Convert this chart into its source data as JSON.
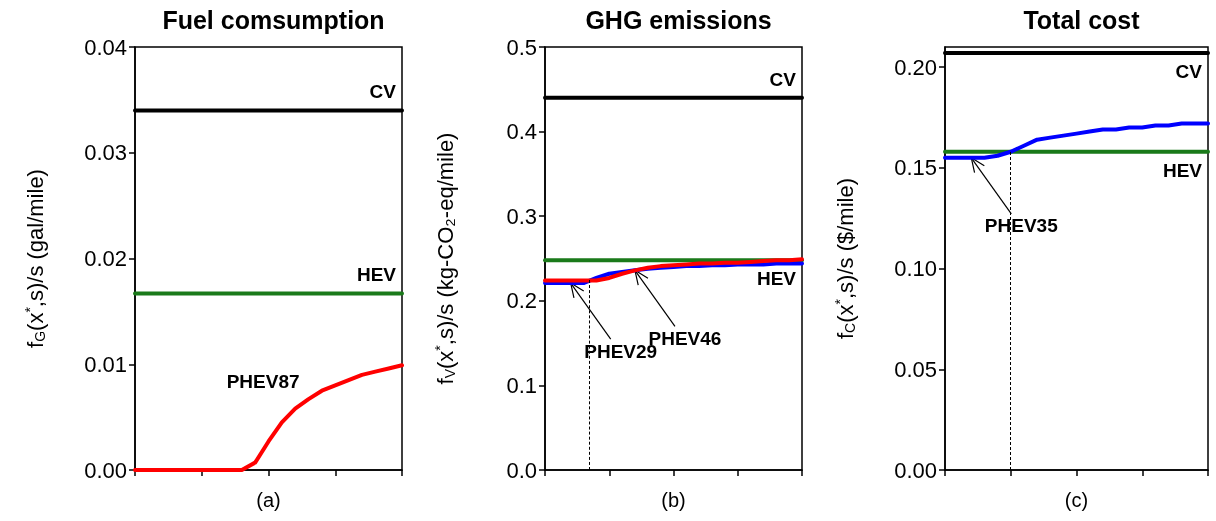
{
  "chart_data": [
    {
      "type": "line",
      "title": "Fuel comsumption",
      "xlabel": "(a)",
      "ylabel": "f$_{G}$(x$^{*}$,s)/s (gal/mile)",
      "categories": [
        null,
        null,
        null,
        null,
        null,
        null,
        null,
        null,
        null,
        null,
        null,
        null,
        null,
        null,
        null,
        null,
        null,
        null,
        null,
        null,
        null
      ],
      "ylim": [
        0,
        0.04
      ],
      "yticks": [
        {
          "value": 0,
          "label": "0.00"
        },
        {
          "value": 0.01,
          "label": "0.01"
        },
        {
          "value": 0.02,
          "label": "0.02"
        },
        {
          "value": 0.03,
          "label": "0.03"
        },
        {
          "value": 0.04,
          "label": "0.04"
        }
      ],
      "tick_labels": "y",
      "grid": false,
      "legend": false,
      "marker": "none",
      "series": [
        {
          "name": "CV",
          "color": "#000000",
          "values": [
            0.034,
            0.034,
            0.034,
            0.034,
            0.034,
            0.034,
            0.034,
            0.034,
            0.034,
            0.034,
            0.034,
            0.034,
            0.034,
            0.034,
            0.034,
            0.034,
            0.034,
            0.034,
            0.034,
            0.034,
            0.034
          ]
        },
        {
          "name": "HEV",
          "color": "#1a7a1a",
          "values": [
            0.0167,
            0.0167,
            0.0167,
            0.0167,
            0.0167,
            0.0167,
            0.0167,
            0.0167,
            0.0167,
            0.0167,
            0.0167,
            0.0167,
            0.0167,
            0.0167,
            0.0167,
            0.0167,
            0.0167,
            0.0167,
            0.0167,
            0.0167,
            0.0167
          ]
        },
        {
          "name": "PHEV87",
          "color": "#ff0000",
          "values": [
            0,
            0,
            0,
            0,
            0,
            0,
            0,
            0,
            0,
            0.0007,
            0.0027,
            0.0045,
            0.0058,
            0.0067,
            0.0075,
            0.008,
            0.0085,
            0.009,
            0.0093,
            0.0096,
            0.0099
          ]
        }
      ]
    },
    {
      "type": "line",
      "title": "GHG emissions",
      "xlabel": "(b)",
      "ylabel": "f$_{V}$(x$^{*}$,s)/s (kg-CO₂-eq/mile)",
      "categories": [
        null,
        null,
        null,
        null,
        null,
        null,
        null,
        null,
        null,
        null,
        null,
        null,
        null,
        null,
        null,
        null,
        null,
        null,
        null,
        null,
        null
      ],
      "ylim": [
        0,
        0.5
      ],
      "yticks": [
        {
          "value": 0,
          "label": "0.0"
        },
        0.1,
        0.2,
        0.3,
        0.4,
        0.5
      ],
      "tick_labels": "y",
      "grid": false,
      "legend": false,
      "marker": "none",
      "series": [
        {
          "name": "CV",
          "color": "#000000",
          "values": [
            0.44,
            0.44,
            0.44,
            0.44,
            0.44,
            0.44,
            0.44,
            0.44,
            0.44,
            0.44,
            0.44,
            0.44,
            0.44,
            0.44,
            0.44,
            0.44,
            0.44,
            0.44,
            0.44,
            0.44,
            0.44
          ]
        },
        {
          "name": "HEV",
          "color": "#1a7a1a",
          "values": [
            0.248,
            0.248,
            0.248,
            0.248,
            0.248,
            0.248,
            0.248,
            0.248,
            0.248,
            0.248,
            0.248,
            0.248,
            0.248,
            0.248,
            0.248,
            0.248,
            0.248,
            0.248,
            0.248,
            0.248,
            0.248
          ]
        },
        {
          "color": "#0000ff",
          "values": [
            0.221,
            0.221,
            0.221,
            0.221,
            0.227,
            0.232,
            0.234,
            0.236,
            0.238,
            0.239,
            0.24,
            0.241,
            0.241,
            0.242,
            0.242,
            0.243,
            0.243,
            0.243,
            0.244,
            0.244,
            0.244
          ]
        },
        {
          "color": "#ff0000",
          "values": [
            0.224,
            0.224,
            0.224,
            0.224,
            0.224,
            0.227,
            0.232,
            0.236,
            0.239,
            0.241,
            0.242,
            0.243,
            0.244,
            0.244,
            0.245,
            0.245,
            0.246,
            0.247,
            0.248,
            0.248,
            0.249
          ]
        }
      ],
      "annotations": [
        "PHEV29",
        "PHEV46"
      ]
    },
    {
      "type": "line",
      "title": "Total cost",
      "xlabel": "(c)",
      "ylabel": "f$_{C}$(x$^{*}$,s)/s ($/mile)",
      "categories": [
        null,
        null,
        null,
        null,
        null,
        null,
        null,
        null,
        null,
        null,
        null,
        null,
        null,
        null,
        null,
        null,
        null,
        null,
        null,
        null,
        null
      ],
      "ylim": [
        0,
        0.21
      ],
      "yticks": [
        {
          "value": 0,
          "label": "0.00"
        },
        {
          "value": 0.05,
          "label": "0.05"
        },
        {
          "value": 0.1,
          "label": "0.10"
        },
        {
          "value": 0.15,
          "label": "0.15"
        },
        {
          "value": 0.2,
          "label": "0.20"
        }
      ],
      "tick_labels": "y",
      "grid": false,
      "legend": false,
      "marker": "none",
      "series": [
        {
          "name": "CV",
          "color": "#000000",
          "values": [
            0.207,
            0.207,
            0.207,
            0.207,
            0.207,
            0.207,
            0.207,
            0.207,
            0.207,
            0.207,
            0.207,
            0.207,
            0.207,
            0.207,
            0.207,
            0.207,
            0.207,
            0.207,
            0.207,
            0.207,
            0.207
          ]
        },
        {
          "name": "HEV",
          "color": "#1a7a1a",
          "values": [
            0.158,
            0.158,
            0.158,
            0.158,
            0.158,
            0.158,
            0.158,
            0.158,
            0.158,
            0.158,
            0.158,
            0.158,
            0.158,
            0.158,
            0.158,
            0.158,
            0.158,
            0.158,
            0.158,
            0.158,
            0.158
          ]
        },
        {
          "color": "#0000ff",
          "values": [
            0.155,
            0.155,
            0.155,
            0.155,
            0.156,
            0.158,
            0.161,
            0.164,
            0.165,
            0.166,
            0.167,
            0.168,
            0.169,
            0.169,
            0.17,
            0.17,
            0.171,
            0.171,
            0.172,
            0.172,
            0.172
          ]
        }
      ],
      "annotations": [
        "PHEV35"
      ]
    }
  ]
}
